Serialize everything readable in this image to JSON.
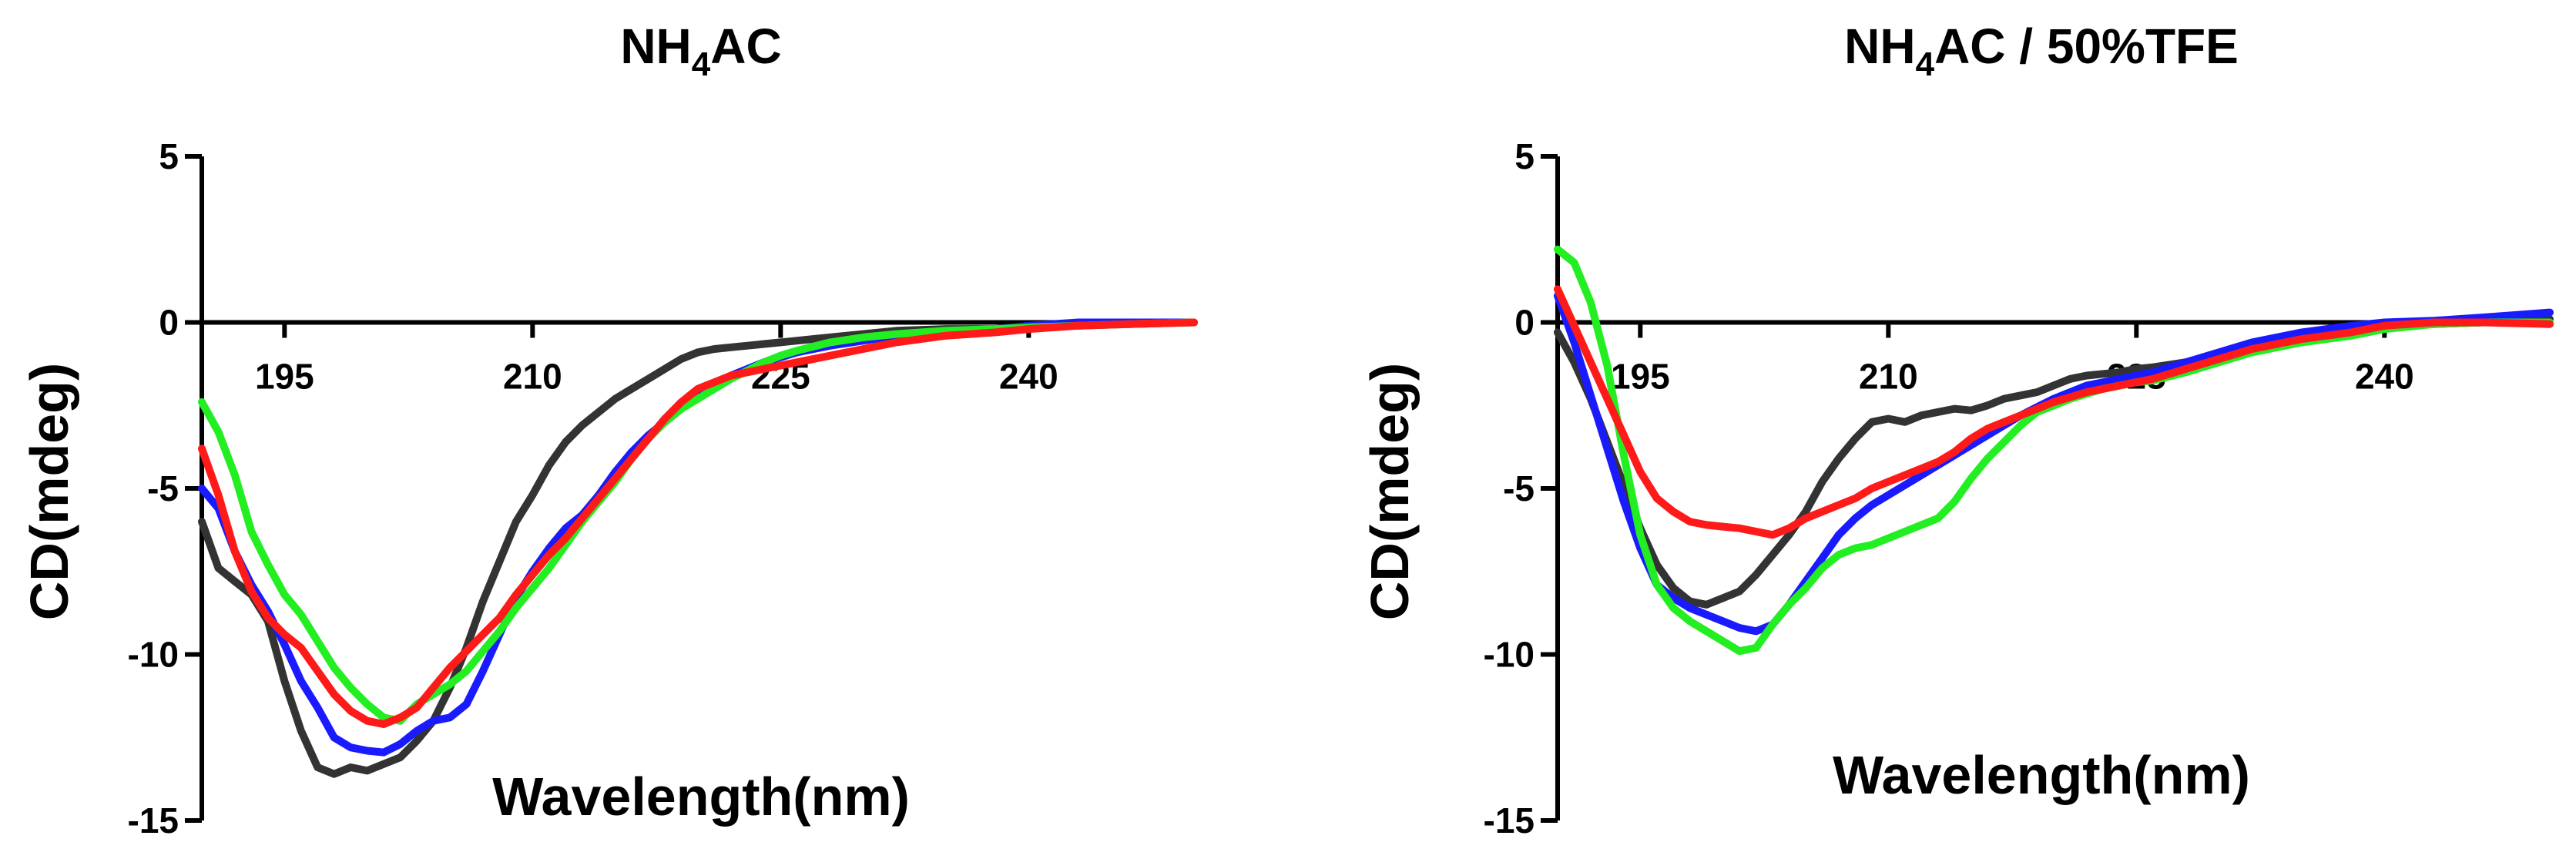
{
  "chart_data": [
    {
      "type": "line",
      "title": "NH4AC",
      "title_main": "NH",
      "title_sub": "4",
      "title_rest": "AC",
      "xlabel": "Wavelength(nm)",
      "ylabel": "CD(mdeg)",
      "xlim": [
        190,
        250
      ],
      "ylim": [
        -15,
        5
      ],
      "xticks": [
        195,
        210,
        225,
        240
      ],
      "yticks": [
        5,
        0,
        -5,
        -10,
        -15
      ],
      "xtick_labels": [
        "195",
        "210",
        "225",
        "240"
      ],
      "ytick_labels": [
        "5",
        "0",
        "-5",
        "-10",
        "-15"
      ],
      "series": [
        {
          "name": "black",
          "color": "#333333",
          "x": [
            190,
            191,
            192,
            193,
            194,
            195,
            196,
            197,
            198,
            199,
            200,
            201,
            202,
            203,
            204,
            205,
            206,
            207,
            208,
            209,
            210,
            211,
            212,
            213,
            214,
            215,
            216,
            217,
            218,
            219,
            220,
            221,
            222,
            223,
            224,
            225,
            226,
            228,
            230,
            232,
            235,
            238,
            240,
            243,
            246,
            250
          ],
          "y": [
            -6.0,
            -7.4,
            -7.8,
            -8.2,
            -9.0,
            -10.8,
            -12.3,
            -13.4,
            -13.6,
            -13.4,
            -13.5,
            -13.3,
            -13.1,
            -12.6,
            -12.0,
            -11.0,
            -9.8,
            -8.4,
            -7.2,
            -6.0,
            -5.2,
            -4.3,
            -3.6,
            -3.1,
            -2.7,
            -2.3,
            -2.0,
            -1.7,
            -1.4,
            -1.1,
            -0.9,
            -0.8,
            -0.75,
            -0.7,
            -0.65,
            -0.6,
            -0.55,
            -0.45,
            -0.35,
            -0.25,
            -0.2,
            -0.2,
            -0.15,
            -0.1,
            -0.05,
            0.0
          ]
        },
        {
          "name": "blue",
          "color": "#1a1aff",
          "x": [
            190,
            191,
            192,
            193,
            194,
            195,
            196,
            197,
            198,
            199,
            200,
            201,
            202,
            203,
            204,
            205,
            206,
            207,
            208,
            209,
            210,
            211,
            212,
            213,
            214,
            215,
            216,
            217,
            218,
            219,
            220,
            221,
            222,
            223,
            224,
            225,
            226,
            228,
            230,
            232,
            235,
            238,
            240,
            243,
            246,
            250
          ],
          "y": [
            -5.0,
            -5.6,
            -6.9,
            -7.9,
            -8.7,
            -9.7,
            -10.8,
            -11.6,
            -12.5,
            -12.8,
            -12.9,
            -12.95,
            -12.7,
            -12.3,
            -12.0,
            -11.9,
            -11.5,
            -10.5,
            -9.4,
            -8.3,
            -7.5,
            -6.8,
            -6.2,
            -5.8,
            -5.2,
            -4.5,
            -3.9,
            -3.4,
            -3.0,
            -2.6,
            -2.2,
            -1.9,
            -1.6,
            -1.4,
            -1.2,
            -1.05,
            -0.9,
            -0.7,
            -0.55,
            -0.4,
            -0.3,
            -0.2,
            -0.1,
            0.0,
            0.0,
            0.0
          ]
        },
        {
          "name": "green",
          "color": "#22ee22",
          "x": [
            190,
            191,
            192,
            193,
            194,
            195,
            196,
            197,
            198,
            199,
            200,
            201,
            202,
            203,
            204,
            205,
            206,
            207,
            208,
            209,
            210,
            211,
            212,
            213,
            214,
            215,
            216,
            217,
            218,
            219,
            220,
            221,
            222,
            223,
            224,
            225,
            226,
            228,
            230,
            232,
            235,
            238,
            240,
            243,
            246,
            250
          ],
          "y": [
            -2.4,
            -3.3,
            -4.6,
            -6.3,
            -7.3,
            -8.2,
            -8.8,
            -9.6,
            -10.4,
            -11.0,
            -11.5,
            -11.9,
            -12.0,
            -11.5,
            -11.2,
            -10.9,
            -10.5,
            -9.9,
            -9.3,
            -8.6,
            -8.0,
            -7.4,
            -6.7,
            -6.0,
            -5.4,
            -4.8,
            -4.1,
            -3.5,
            -3.0,
            -2.6,
            -2.3,
            -2.0,
            -1.7,
            -1.45,
            -1.2,
            -1.0,
            -0.85,
            -0.6,
            -0.45,
            -0.35,
            -0.25,
            -0.2,
            -0.15,
            -0.1,
            -0.05,
            0.0
          ]
        },
        {
          "name": "red",
          "color": "#ff1a1a",
          "x": [
            190,
            191,
            192,
            193,
            194,
            195,
            196,
            197,
            198,
            199,
            200,
            201,
            202,
            203,
            204,
            205,
            206,
            207,
            208,
            209,
            210,
            211,
            212,
            213,
            214,
            215,
            216,
            217,
            218,
            219,
            220,
            221,
            222,
            223,
            224,
            225,
            226,
            228,
            230,
            232,
            235,
            238,
            240,
            243,
            246,
            250
          ],
          "y": [
            -3.8,
            -5.2,
            -6.9,
            -8.1,
            -8.9,
            -9.4,
            -9.8,
            -10.5,
            -11.2,
            -11.7,
            -12.0,
            -12.1,
            -11.9,
            -11.6,
            -11.0,
            -10.4,
            -9.9,
            -9.4,
            -8.9,
            -8.2,
            -7.6,
            -7.0,
            -6.5,
            -5.9,
            -5.3,
            -4.7,
            -4.1,
            -3.5,
            -2.9,
            -2.4,
            -2.0,
            -1.8,
            -1.6,
            -1.5,
            -1.4,
            -1.3,
            -1.2,
            -1.0,
            -0.8,
            -0.6,
            -0.4,
            -0.3,
            -0.2,
            -0.1,
            -0.05,
            0.0
          ]
        }
      ]
    },
    {
      "type": "line",
      "title": "NH4AC / 50%TFE",
      "title_main": "NH",
      "title_sub": "4",
      "title_rest": "AC / 50%TFE",
      "xlabel": "Wavelength(nm)",
      "ylabel": "CD(mdeg)",
      "xlim": [
        190,
        250
      ],
      "ylim": [
        -15,
        5
      ],
      "xticks": [
        195,
        210,
        225,
        240
      ],
      "yticks": [
        5,
        0,
        -5,
        -10,
        -15
      ],
      "xtick_labels": [
        "195",
        "210",
        "225",
        "240"
      ],
      "ytick_labels": [
        "5",
        "0",
        "-5",
        "-10",
        "-15"
      ],
      "series": [
        {
          "name": "black",
          "color": "#333333",
          "x": [
            190,
            191,
            192,
            193,
            194,
            195,
            196,
            197,
            198,
            199,
            200,
            201,
            202,
            203,
            204,
            205,
            206,
            207,
            208,
            209,
            210,
            211,
            212,
            213,
            214,
            215,
            216,
            217,
            218,
            219,
            220,
            221,
            222,
            223,
            224,
            225,
            226,
            228,
            230,
            232,
            235,
            238,
            240,
            243,
            246,
            250
          ],
          "y": [
            -0.3,
            -1.2,
            -2.3,
            -3.6,
            -4.9,
            -6.2,
            -7.3,
            -8.0,
            -8.4,
            -8.5,
            -8.3,
            -8.1,
            -7.6,
            -7.0,
            -6.4,
            -5.7,
            -4.8,
            -4.1,
            -3.5,
            -3.0,
            -2.9,
            -3.0,
            -2.8,
            -2.7,
            -2.6,
            -2.65,
            -2.5,
            -2.3,
            -2.2,
            -2.1,
            -1.9,
            -1.7,
            -1.6,
            -1.55,
            -1.5,
            -1.4,
            -1.35,
            -1.2,
            -1.0,
            -0.8,
            -0.5,
            -0.3,
            -0.1,
            -0.05,
            0.0,
            0.1
          ]
        },
        {
          "name": "blue",
          "color": "#1a1aff",
          "x": [
            190,
            191,
            192,
            193,
            194,
            195,
            196,
            197,
            198,
            199,
            200,
            201,
            202,
            203,
            204,
            205,
            206,
            207,
            208,
            209,
            210,
            211,
            212,
            213,
            214,
            215,
            216,
            217,
            218,
            219,
            220,
            221,
            222,
            223,
            224,
            225,
            226,
            228,
            230,
            232,
            235,
            238,
            240,
            243,
            246,
            250
          ],
          "y": [
            0.8,
            -0.6,
            -2.2,
            -3.8,
            -5.4,
            -6.8,
            -7.9,
            -8.3,
            -8.6,
            -8.8,
            -9.0,
            -9.2,
            -9.3,
            -9.1,
            -8.5,
            -7.8,
            -7.1,
            -6.4,
            -5.9,
            -5.5,
            -5.2,
            -4.9,
            -4.6,
            -4.3,
            -4.0,
            -3.7,
            -3.4,
            -3.1,
            -2.8,
            -2.55,
            -2.3,
            -2.1,
            -1.9,
            -1.8,
            -1.7,
            -1.6,
            -1.5,
            -1.2,
            -0.9,
            -0.6,
            -0.3,
            -0.1,
            0.0,
            0.05,
            0.15,
            0.3
          ]
        },
        {
          "name": "green",
          "color": "#22ee22",
          "x": [
            190,
            191,
            192,
            193,
            194,
            195,
            196,
            197,
            198,
            199,
            200,
            201,
            202,
            203,
            204,
            205,
            206,
            207,
            208,
            209,
            210,
            211,
            212,
            213,
            214,
            215,
            216,
            217,
            218,
            219,
            220,
            221,
            222,
            223,
            224,
            225,
            226,
            228,
            230,
            232,
            235,
            238,
            240,
            243,
            246,
            250
          ],
          "y": [
            2.2,
            1.8,
            0.6,
            -1.3,
            -4.0,
            -6.4,
            -7.9,
            -8.6,
            -9.0,
            -9.3,
            -9.6,
            -9.9,
            -9.8,
            -9.1,
            -8.5,
            -8.0,
            -7.4,
            -7.0,
            -6.8,
            -6.7,
            -6.5,
            -6.3,
            -6.1,
            -5.9,
            -5.4,
            -4.7,
            -4.1,
            -3.6,
            -3.1,
            -2.7,
            -2.5,
            -2.3,
            -2.15,
            -2.0,
            -1.9,
            -1.8,
            -1.75,
            -1.5,
            -1.2,
            -0.9,
            -0.6,
            -0.4,
            -0.2,
            -0.05,
            0.0,
            0.0
          ]
        },
        {
          "name": "red",
          "color": "#ff1a1a",
          "x": [
            190,
            191,
            192,
            193,
            194,
            195,
            196,
            197,
            198,
            199,
            200,
            201,
            202,
            203,
            204,
            205,
            206,
            207,
            208,
            209,
            210,
            211,
            212,
            213,
            214,
            215,
            216,
            217,
            218,
            219,
            220,
            221,
            222,
            223,
            224,
            225,
            226,
            228,
            230,
            232,
            235,
            238,
            240,
            243,
            246,
            250
          ],
          "y": [
            1.0,
            -0.1,
            -1.2,
            -2.3,
            -3.4,
            -4.5,
            -5.3,
            -5.7,
            -6.0,
            -6.1,
            -6.15,
            -6.2,
            -6.3,
            -6.4,
            -6.2,
            -5.9,
            -5.7,
            -5.5,
            -5.3,
            -5.0,
            -4.8,
            -4.6,
            -4.4,
            -4.2,
            -3.9,
            -3.5,
            -3.2,
            -3.0,
            -2.8,
            -2.6,
            -2.4,
            -2.25,
            -2.1,
            -2.0,
            -1.9,
            -1.8,
            -1.7,
            -1.4,
            -1.1,
            -0.8,
            -0.5,
            -0.3,
            -0.1,
            0.0,
            0.0,
            -0.05
          ]
        }
      ]
    }
  ]
}
